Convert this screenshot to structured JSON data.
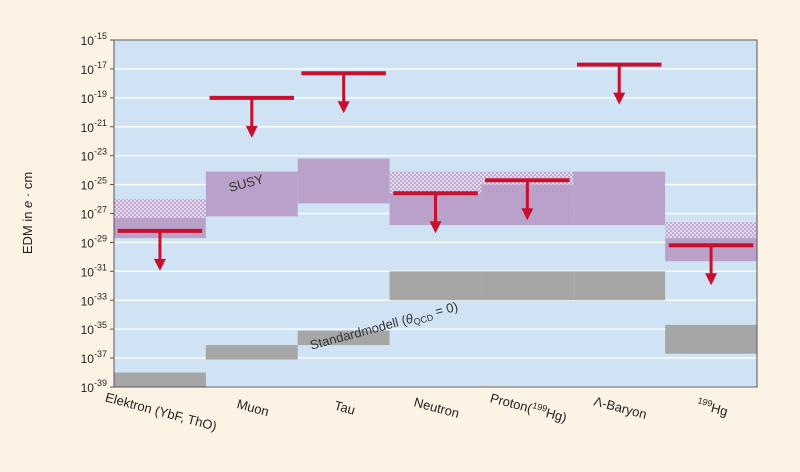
{
  "chart_data": {
    "type": "bar",
    "ylabel": "EDM in e · cm",
    "ylabel_parts": {
      "prefix": "EDM in ",
      "italic": "e",
      "suffix": " · cm"
    },
    "y_scale": "log",
    "ylim": [
      1e-39,
      1e-15
    ],
    "y_tick_exponents": [
      -15,
      -17,
      -19,
      -21,
      -23,
      -25,
      -27,
      -29,
      -31,
      -33,
      -35,
      -37,
      -39
    ],
    "y_tick_base": "10",
    "categories": [
      {
        "label": "Elektron (YbF, ThO)",
        "base": "Elektron (YbF, ThO)",
        "sup": "",
        "after": ""
      },
      {
        "label": "Muon",
        "base": "Muon",
        "sup": "",
        "after": ""
      },
      {
        "label": "Tau",
        "base": "Tau",
        "sup": "",
        "after": ""
      },
      {
        "label": "Neutron",
        "base": "Neutron",
        "sup": "",
        "after": ""
      },
      {
        "label": "Proton(199Hg)",
        "base": "Proton(",
        "sup": "199",
        "after": "Hg)"
      },
      {
        "label": "Λ-Baryon",
        "base": "Λ-Baryon",
        "sup": "",
        "after": ""
      },
      {
        "label": "199Hg",
        "base": "",
        "sup": "199",
        "after": "Hg"
      }
    ],
    "series": [
      {
        "name": "SUSY",
        "kind": "range",
        "color": "#b9a1c9",
        "ranges": [
          [
            -28.7,
            -27.3
          ],
          [
            -27.2,
            -24.1
          ],
          [
            -26.3,
            -23.2
          ],
          [
            -27.8,
            -24.1
          ],
          [
            -27.8,
            -24.1
          ],
          [
            -27.8,
            -24.1
          ],
          [
            -30.3,
            -28.7
          ]
        ]
      },
      {
        "name": "SUSY (hatched extension)",
        "kind": "range",
        "color": "#d9c8e3",
        "ranges": [
          [
            -27.3,
            -26.0
          ],
          null,
          null,
          [
            -25.6,
            -24.1
          ],
          [
            -25.0,
            -24.1
          ],
          null,
          [
            -28.7,
            -27.6
          ]
        ]
      },
      {
        "name": "Standardmodell (θQCD = 0)",
        "kind": "range",
        "color": "#a6a6a6",
        "ranges": [
          [
            -39.0,
            -38.0
          ],
          [
            -37.1,
            -36.1
          ],
          [
            -36.1,
            -35.1
          ],
          [
            -33.0,
            -31.0
          ],
          [
            -33.0,
            -31.0
          ],
          [
            -33.0,
            -31.0
          ],
          [
            -36.7,
            -34.7
          ]
        ]
      },
      {
        "name": "Experimental upper limit",
        "kind": "upper_limit",
        "color": "#c8102e",
        "values": [
          -28.2,
          -19.0,
          -17.3,
          -25.6,
          -24.7,
          -16.7,
          -29.2
        ]
      }
    ],
    "annotations": [
      {
        "text": "SUSY",
        "category": 1
      },
      {
        "text": "Standardmodell (θQCD = 0)",
        "prefix": "Standardmodell (",
        "theta": "θ",
        "sub": "QCD",
        "suffix": " = 0)"
      }
    ]
  },
  "colors": {
    "background": "#fdf3e4",
    "plot_background": "#cfe3f4",
    "susy": "#b9a1c9",
    "standard_model": "#a6a6a6",
    "limit": "#c8102e"
  }
}
